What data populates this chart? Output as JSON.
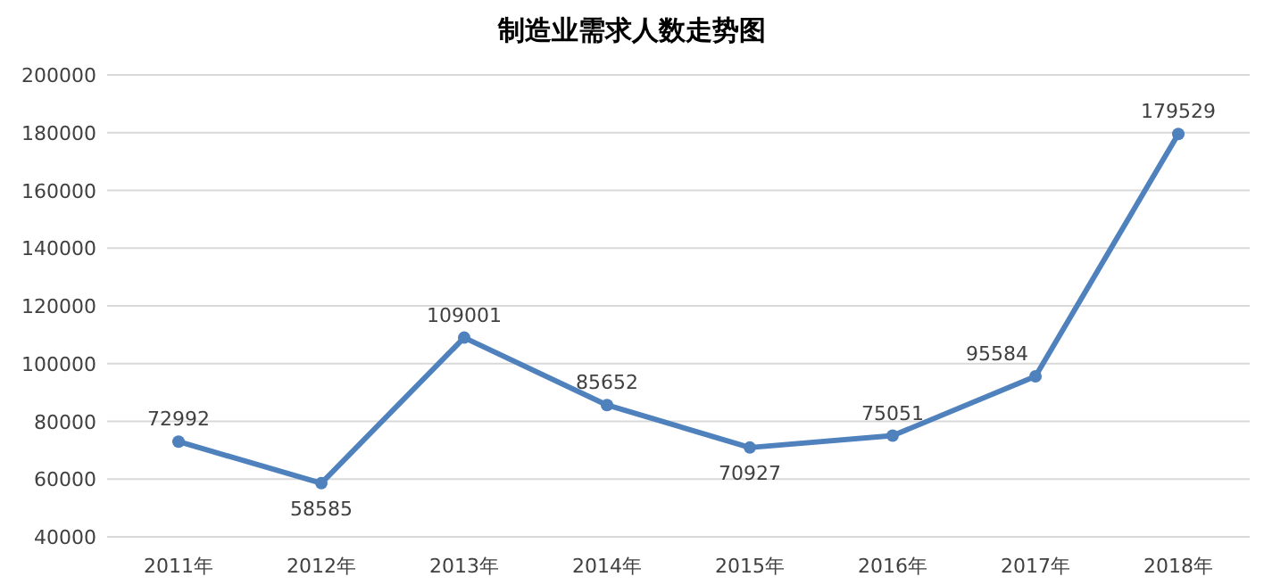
{
  "chart_data": {
    "type": "line",
    "title": "制造业需求人数走势图",
    "categories": [
      "2011年",
      "2012年",
      "2013年",
      "2014年",
      "2015年",
      "2016年",
      "2017年",
      "2018年"
    ],
    "series": [
      {
        "color": "#4f81bd",
        "values": [
          72992,
          58585,
          109001,
          85652,
          70927,
          75051,
          95584,
          179529
        ]
      }
    ],
    "ylim": [
      40000,
      200000
    ],
    "yticks": [
      40000,
      60000,
      80000,
      100000,
      120000,
      140000,
      160000,
      180000,
      200000
    ],
    "grid": "y",
    "marker": "circle",
    "line_style": "solid",
    "data_labels": true
  }
}
